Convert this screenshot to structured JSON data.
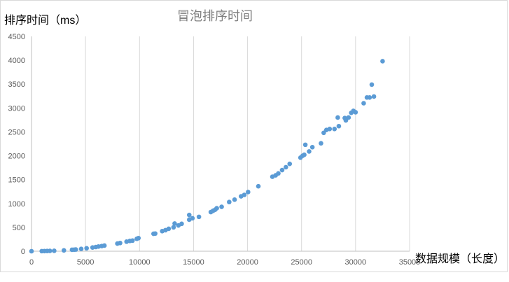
{
  "chart_data": {
    "type": "scatter",
    "title": "冒泡排序时间",
    "xlabel": "数据规模（长度）",
    "ylabel": "排序时间（ms）",
    "xlim": [
      0,
      35000
    ],
    "ylim": [
      0,
      4500
    ],
    "xticks": [
      0,
      5000,
      10000,
      15000,
      20000,
      25000,
      30000,
      35000
    ],
    "yticks": [
      0,
      500,
      1000,
      1500,
      2000,
      2500,
      3000,
      3500,
      4000,
      4500
    ],
    "grid": "vertical",
    "legend": "none",
    "marker_color": "#5B9BD5",
    "series": [
      {
        "points": [
          [
            0,
            0
          ],
          [
            950,
            2
          ],
          [
            1200,
            3
          ],
          [
            1450,
            5
          ],
          [
            1700,
            6
          ],
          [
            2100,
            9
          ],
          [
            3000,
            18
          ],
          [
            3750,
            30
          ],
          [
            3950,
            33
          ],
          [
            4100,
            35
          ],
          [
            4600,
            48
          ],
          [
            5100,
            62
          ],
          [
            5650,
            78
          ],
          [
            5950,
            88
          ],
          [
            6200,
            98
          ],
          [
            6500,
            108
          ],
          [
            6750,
            118
          ],
          [
            7950,
            160
          ],
          [
            8200,
            172
          ],
          [
            8800,
            200
          ],
          [
            9100,
            215
          ],
          [
            9350,
            222
          ],
          [
            9750,
            260
          ],
          [
            9900,
            275
          ],
          [
            11300,
            365
          ],
          [
            11450,
            370
          ],
          [
            12100,
            420
          ],
          [
            12400,
            440
          ],
          [
            12700,
            470
          ],
          [
            13150,
            500
          ],
          [
            13250,
            580
          ],
          [
            13600,
            540
          ],
          [
            13900,
            575
          ],
          [
            14600,
            660
          ],
          [
            14600,
            760
          ],
          [
            14900,
            690
          ],
          [
            15500,
            720
          ],
          [
            16600,
            820
          ],
          [
            16800,
            845
          ],
          [
            17000,
            870
          ],
          [
            17150,
            900
          ],
          [
            17600,
            930
          ],
          [
            18300,
            1030
          ],
          [
            18800,
            1080
          ],
          [
            19400,
            1150
          ],
          [
            19700,
            1180
          ],
          [
            20050,
            1240
          ],
          [
            21000,
            1360
          ],
          [
            22300,
            1560
          ],
          [
            22600,
            1590
          ],
          [
            22850,
            1630
          ],
          [
            23200,
            1700
          ],
          [
            23550,
            1760
          ],
          [
            23900,
            1830
          ],
          [
            24900,
            1960
          ],
          [
            25100,
            2000
          ],
          [
            25250,
            2020
          ],
          [
            25350,
            2230
          ],
          [
            25700,
            2090
          ],
          [
            26000,
            2180
          ],
          [
            26800,
            2260
          ],
          [
            27050,
            2480
          ],
          [
            27300,
            2540
          ],
          [
            27600,
            2560
          ],
          [
            28050,
            2560
          ],
          [
            28350,
            2800
          ],
          [
            28450,
            2620
          ],
          [
            29000,
            2790
          ],
          [
            29100,
            2740
          ],
          [
            29350,
            2800
          ],
          [
            29600,
            2900
          ],
          [
            29800,
            2940
          ],
          [
            30000,
            2910
          ],
          [
            30750,
            3100
          ],
          [
            31050,
            3220
          ],
          [
            31300,
            3220
          ],
          [
            31500,
            3490
          ],
          [
            31700,
            3240
          ],
          [
            32500,
            3980
          ]
        ]
      }
    ]
  }
}
